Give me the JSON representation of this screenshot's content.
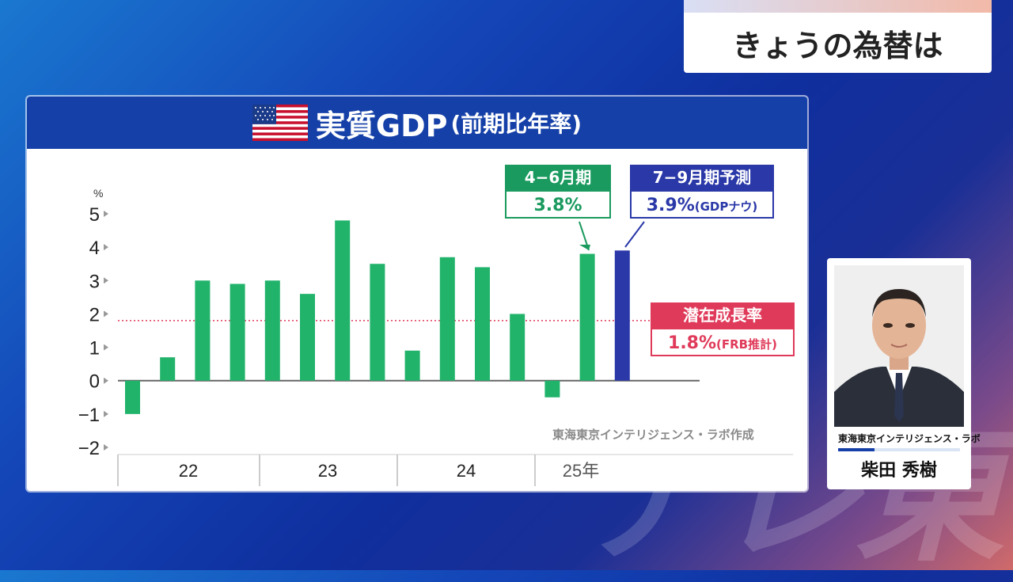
{
  "caption": {
    "text": "きょうの為替は"
  },
  "panel": {
    "title": "実質GDP",
    "title_sub": "(前期比年率)",
    "source": "東海東京インテリジェンス・ラボ作成"
  },
  "chart_data": {
    "type": "bar",
    "title": "実質GDP(前期比年率)",
    "ylabel": "%",
    "ylim": [
      -2,
      5
    ],
    "yticks": [
      "5",
      "4",
      "3",
      "2",
      "1",
      "0",
      "−1",
      "−2"
    ],
    "year_labels": [
      "22",
      "23",
      "24",
      "25年"
    ],
    "values": [
      -1.0,
      0.7,
      3.0,
      2.9,
      3.0,
      2.6,
      4.8,
      3.5,
      0.9,
      3.7,
      3.4,
      2.0,
      -0.5,
      3.8,
      3.9
    ],
    "colors": {
      "actual": "#22b36b",
      "forecast": "#2a38a8",
      "reference": "#e03a5a"
    },
    "forecast_index": 14,
    "reference_line": {
      "value": 1.8
    },
    "callouts": [
      {
        "head": "4−6月期",
        "value": "3.8%"
      },
      {
        "head": "7−9月期予測",
        "value": "3.9%",
        "note": "(GDPナウ)"
      },
      {
        "head": "潜在成長率",
        "value": "1.8%",
        "note": "(FRB推計)"
      }
    ]
  },
  "speaker": {
    "affiliation": "東海東京インテリジェンス・ラボ",
    "name": "柴田 秀樹"
  },
  "watermark": "テレ東"
}
